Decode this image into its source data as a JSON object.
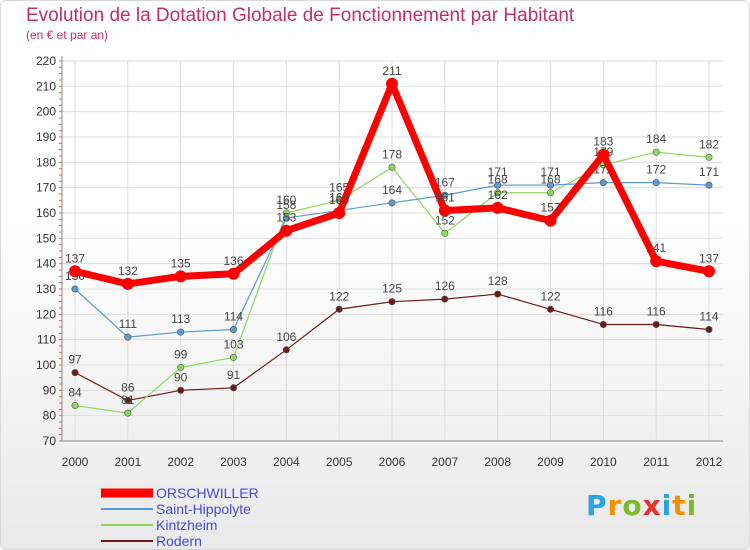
{
  "title": "Evolution de la Dotation Globale de Fonctionnement par Habitant",
  "subtitle": "(en € et par an)",
  "logo": {
    "text": "Proxiti",
    "letter_colors": [
      "#2aa3df",
      "#f29100",
      "#7ab929",
      "#e8312f",
      "#2aa3df",
      "#f29100",
      "#7ab929"
    ]
  },
  "chart_data": {
    "type": "line",
    "x": [
      "2000",
      "2001",
      "2002",
      "2003",
      "2004",
      "2005",
      "2006",
      "2007",
      "2008",
      "2009",
      "2010",
      "2011",
      "2012"
    ],
    "ylim": [
      70,
      220
    ],
    "yticks": [
      "70",
      "80",
      "90",
      "100",
      "110",
      "120",
      "130",
      "140",
      "150",
      "160",
      "170",
      "180",
      "190",
      "200",
      "210",
      "220"
    ],
    "grid": true,
    "series": [
      {
        "name": "Rodern",
        "color": "#6b1b1b",
        "width": 1.2,
        "values": [
          97,
          86,
          90,
          91,
          106,
          122,
          125,
          126,
          128,
          122,
          116,
          116,
          114
        ],
        "labels": [
          "97",
          "86",
          "90",
          "91",
          "106",
          "122",
          "125",
          "126",
          "128",
          "122",
          "116",
          "116",
          "114"
        ]
      },
      {
        "name": "Kintzheim",
        "color": "#8fd85f",
        "width": 1.2,
        "values": [
          84,
          81,
          99,
          103,
          160,
          165,
          178,
          152,
          168,
          168,
          179,
          184,
          182
        ],
        "labels": [
          "84",
          "81",
          "99",
          "103",
          "160",
          "165",
          "178",
          "152",
          "168",
          "168",
          "179",
          "184",
          "182"
        ]
      },
      {
        "name": "Saint-Hippolyte",
        "color": "#5b9bd5",
        "width": 1.2,
        "values": [
          130,
          111,
          113,
          114,
          158,
          161,
          164,
          167,
          171,
          171,
          172,
          172,
          171
        ],
        "labels": [
          "130",
          "111",
          "113",
          "114",
          "158",
          "161",
          "164",
          "167",
          "171",
          "171",
          "172",
          "172",
          "171"
        ]
      },
      {
        "name": "ORSCHWILLER",
        "color": "#ff0000",
        "width": 7,
        "values": [
          137,
          132,
          135,
          136,
          153,
          160,
          211,
          161,
          162,
          157,
          183,
          141,
          137
        ],
        "labels": [
          "137",
          "132",
          "135",
          "136",
          "153",
          "160",
          "211",
          "161",
          "162",
          "157",
          "183",
          "141",
          "137"
        ]
      }
    ],
    "legend": [
      {
        "name": "ORSCHWILLER",
        "color": "#ff0000"
      },
      {
        "name": "Saint-Hippolyte",
        "color": "#5b9bd5"
      },
      {
        "name": "Kintzheim",
        "color": "#8fd85f"
      },
      {
        "name": "Rodern",
        "color": "#6b1b1b"
      }
    ],
    "legend_position": "bottom-left"
  }
}
